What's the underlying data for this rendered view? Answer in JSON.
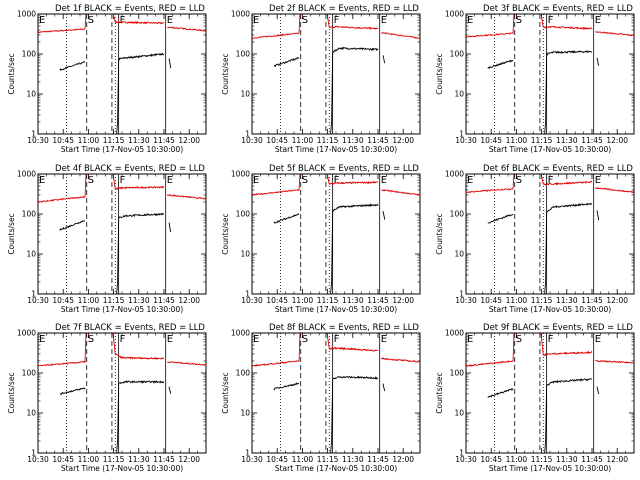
{
  "figure": {
    "xlabel": "Start Time (17-Nov-05 10:30:00)",
    "ylabel": "Counts/sec"
  },
  "chart_data": {
    "type": "line",
    "x_range_minutes": [
      0,
      100
    ],
    "x_ticks": [
      {
        "label": "10:30",
        "minute": 0
      },
      {
        "label": "10:45",
        "minute": 15
      },
      {
        "label": "11:00",
        "minute": 30
      },
      {
        "label": "11:15",
        "minute": 45
      },
      {
        "label": "11:30",
        "minute": 60
      },
      {
        "label": "11:45",
        "minute": 75
      },
      {
        "label": "12:00",
        "minute": 90
      }
    ],
    "y_scale": "log",
    "ylim": [
      1,
      1000
    ],
    "y_ticks": [
      {
        "label": "1",
        "value": 1
      },
      {
        "label": "10",
        "value": 10
      },
      {
        "label": "100",
        "value": 100
      },
      {
        "label": "1000",
        "value": 1000
      }
    ],
    "markers": {
      "dotted_minutes": [
        17,
        46
      ],
      "dashed_minutes": [
        29,
        44
      ],
      "solid_minutes": [
        48,
        76
      ]
    },
    "letters": [
      {
        "text": "E",
        "minute": 0.6
      },
      {
        "text": "S",
        "minute": 29.6
      },
      {
        "text": "F",
        "minute": 48.6
      },
      {
        "text": "E",
        "minute": 76.6
      }
    ],
    "panels": [
      {
        "title": "Det 1f BLACK = Events, RED = LLD",
        "red": {
          "pre": [
            [
              0,
              350
            ],
            [
              28,
              420
            ]
          ],
          "post": [
            [
              46,
              630
            ],
            [
              50,
              620
            ],
            [
              75,
              590
            ]
          ],
          "tail": [
            [
              77,
              470
            ],
            [
              100,
              380
            ]
          ]
        },
        "black": {
          "pre": [
            [
              13,
              40
            ],
            [
              28,
              63
            ]
          ],
          "post": [
            [
              48,
              75
            ],
            [
              52,
              80
            ],
            [
              75,
              100
            ]
          ],
          "tail": [
            [
              78,
              75
            ],
            [
              79,
              45
            ]
          ]
        }
      },
      {
        "title": "Det 2f BLACK = Events, RED = LLD",
        "red": {
          "pre": [
            [
              0,
              250
            ],
            [
              28,
              330
            ]
          ],
          "post": [
            [
              46,
              460
            ],
            [
              50,
              480
            ],
            [
              75,
              430
            ]
          ],
          "tail": [
            [
              77,
              340
            ],
            [
              100,
              250
            ]
          ]
        },
        "black": {
          "pre": [
            [
              13,
              50
            ],
            [
              28,
              80
            ]
          ],
          "post": [
            [
              48,
              110
            ],
            [
              52,
              140
            ],
            [
              75,
              130
            ]
          ],
          "tail": [
            [
              78,
              95
            ],
            [
              79,
              60
            ]
          ]
        }
      },
      {
        "title": "Det 3f BLACK = Events, RED = LLD",
        "red": {
          "pre": [
            [
              0,
              270
            ],
            [
              28,
              330
            ]
          ],
          "post": [
            [
              46,
              470
            ],
            [
              50,
              480
            ],
            [
              75,
              430
            ]
          ],
          "tail": [
            [
              77,
              360
            ],
            [
              100,
              290
            ]
          ]
        },
        "black": {
          "pre": [
            [
              13,
              45
            ],
            [
              28,
              70
            ]
          ],
          "post": [
            [
              48,
              100
            ],
            [
              52,
              110
            ],
            [
              75,
              115
            ]
          ],
          "tail": [
            [
              78,
              80
            ],
            [
              79,
              50
            ]
          ]
        }
      },
      {
        "title": "Det 4f BLACK = Events, RED = LLD",
        "red": {
          "pre": [
            [
              0,
              200
            ],
            [
              28,
              270
            ]
          ],
          "post": [
            [
              46,
              420
            ],
            [
              50,
              450
            ],
            [
              75,
              470
            ]
          ],
          "tail": [
            [
              77,
              300
            ],
            [
              100,
              240
            ]
          ]
        },
        "black": {
          "pre": [
            [
              13,
              40
            ],
            [
              28,
              70
            ]
          ],
          "post": [
            [
              48,
              80
            ],
            [
              52,
              90
            ],
            [
              75,
              100
            ]
          ],
          "tail": [
            [
              78,
              60
            ],
            [
              79,
              35
            ]
          ]
        }
      },
      {
        "title": "Det 5f BLACK = Events, RED = LLD",
        "red": {
          "pre": [
            [
              0,
              300
            ],
            [
              28,
              400
            ]
          ],
          "post": [
            [
              46,
              560
            ],
            [
              50,
              590
            ],
            [
              75,
              620
            ]
          ],
          "tail": [
            [
              77,
              400
            ],
            [
              100,
              300
            ]
          ]
        },
        "black": {
          "pre": [
            [
              13,
              60
            ],
            [
              28,
              100
            ]
          ],
          "post": [
            [
              48,
              120
            ],
            [
              52,
              150
            ],
            [
              75,
              170
            ]
          ],
          "tail": [
            [
              78,
              120
            ],
            [
              79,
              70
            ]
          ]
        }
      },
      {
        "title": "Det 6f BLACK = Events, RED = LLD",
        "red": {
          "pre": [
            [
              0,
              350
            ],
            [
              28,
              430
            ]
          ],
          "post": [
            [
              46,
              550
            ],
            [
              50,
              560
            ],
            [
              75,
              630
            ]
          ],
          "tail": [
            [
              77,
              450
            ],
            [
              100,
              350
            ]
          ]
        },
        "black": {
          "pre": [
            [
              13,
              60
            ],
            [
              28,
              100
            ]
          ],
          "post": [
            [
              48,
              110
            ],
            [
              52,
              150
            ],
            [
              75,
              180
            ]
          ],
          "tail": [
            [
              78,
              120
            ],
            [
              79,
              70
            ]
          ]
        }
      },
      {
        "title": "Det 7f BLACK = Events, RED = LLD",
        "red": {
          "pre": [
            [
              0,
              150
            ],
            [
              28,
              190
            ]
          ],
          "post": [
            [
              46,
              300
            ],
            [
              50,
              240
            ],
            [
              75,
              230
            ]
          ],
          "tail": [
            [
              77,
              190
            ],
            [
              100,
              160
            ]
          ]
        },
        "black": {
          "pre": [
            [
              13,
              30
            ],
            [
              28,
              42
            ]
          ],
          "post": [
            [
              48,
              55
            ],
            [
              52,
              60
            ],
            [
              75,
              60
            ]
          ],
          "tail": [
            [
              78,
              45
            ],
            [
              79,
              30
            ]
          ]
        }
      },
      {
        "title": "Det 8f BLACK = Events, RED = LLD",
        "red": {
          "pre": [
            [
              0,
              150
            ],
            [
              28,
              200
            ]
          ],
          "post": [
            [
              46,
              400
            ],
            [
              50,
              420
            ],
            [
              75,
              360
            ]
          ],
          "tail": [
            [
              77,
              230
            ],
            [
              100,
              190
            ]
          ]
        },
        "black": {
          "pre": [
            [
              13,
              40
            ],
            [
              28,
              55
            ]
          ],
          "post": [
            [
              48,
              70
            ],
            [
              52,
              80
            ],
            [
              75,
              75
            ]
          ],
          "tail": [
            [
              78,
              55
            ],
            [
              79,
              35
            ]
          ]
        }
      },
      {
        "title": "Det 9f BLACK = Events, RED = LLD",
        "red": {
          "pre": [
            [
              0,
              150
            ],
            [
              28,
              200
            ]
          ],
          "post": [
            [
              46,
              280
            ],
            [
              50,
              300
            ],
            [
              75,
              330
            ]
          ],
          "tail": [
            [
              77,
              200
            ],
            [
              100,
              180
            ]
          ]
        },
        "black": {
          "pre": [
            [
              13,
              25
            ],
            [
              28,
              40
            ]
          ],
          "post": [
            [
              48,
              50
            ],
            [
              52,
              60
            ],
            [
              75,
              70
            ]
          ],
          "tail": [
            [
              78,
              45
            ],
            [
              79,
              30
            ]
          ]
        }
      }
    ]
  }
}
